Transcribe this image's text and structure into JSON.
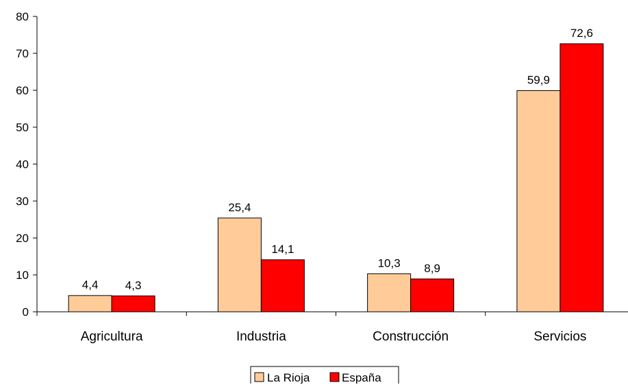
{
  "chart_data": {
    "type": "bar",
    "categories": [
      "Agricultura",
      "Industria",
      "Construcción",
      "Servicios"
    ],
    "series": [
      {
        "name": "La Rioja",
        "values": [
          4.4,
          25.4,
          10.3,
          59.9
        ],
        "labels": [
          "4,4",
          "25,4",
          "10,3",
          "59,9"
        ],
        "color": "#FFCC99"
      },
      {
        "name": "España",
        "values": [
          4.3,
          14.1,
          8.9,
          72.6
        ],
        "labels": [
          "4,3",
          "14,1",
          "8,9",
          "72,6"
        ],
        "color": "#FF0000"
      }
    ],
    "title": "",
    "xlabel": "",
    "ylabel": "",
    "ylim": [
      0,
      80
    ],
    "yticks": [
      0,
      10,
      20,
      30,
      40,
      50,
      60,
      70,
      80
    ],
    "grid": false,
    "legend_position": "bottom"
  }
}
